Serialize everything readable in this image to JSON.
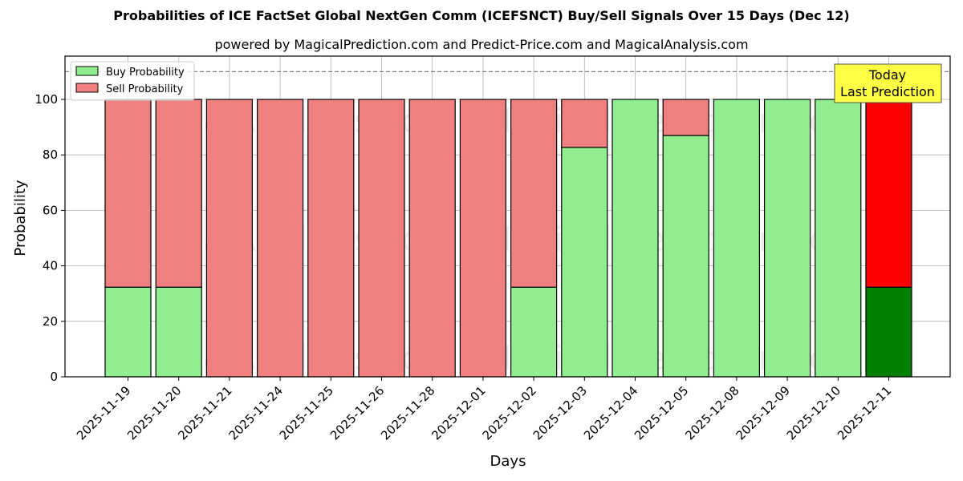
{
  "title": "Probabilities of ICE FactSet Global NextGen Comm (ICEFSNCT) Buy/Sell Signals Over 15 Days (Dec 12)",
  "subtitle": "powered by MagicalPrediction.com and Predict-Price.com and MagicalAnalysis.com",
  "annotation": {
    "line1": "Today",
    "line2": "Last Prediction",
    "bg_color": "#ffff44"
  },
  "watermarks": [
    "MagicalAnalysis.com",
    "MagicalPrediction.com"
  ],
  "colors": {
    "buy": "#90ee90",
    "sell": "#f08080",
    "buy_today": "#008000",
    "sell_today": "#ff0000"
  },
  "chart_data": {
    "type": "bar",
    "stacked": true,
    "title": "Probabilities of ICE FactSet Global NextGen Comm (ICEFSNCT) Buy/Sell Signals Over 15 Days (Dec 12)",
    "subtitle": "powered by MagicalPrediction.com and Predict-Price.com and MagicalAnalysis.com",
    "xlabel": "Days",
    "ylabel": "Probability",
    "ylim": [
      0,
      115
    ],
    "yticks": [
      0,
      20,
      40,
      60,
      80,
      100
    ],
    "grid": true,
    "legend_position": "upper left",
    "reference_line": {
      "y": 110,
      "style": "dashed"
    },
    "categories": [
      "2025-11-19",
      "2025-11-20",
      "2025-11-21",
      "2025-11-24",
      "2025-11-25",
      "2025-11-26",
      "2025-11-28",
      "2025-12-01",
      "2025-12-02",
      "2025-12-03",
      "2025-12-04",
      "2025-12-05",
      "2025-12-08",
      "2025-12-09",
      "2025-12-10",
      "2025-12-11"
    ],
    "series": [
      {
        "name": "Buy Probability",
        "values": [
          32.3,
          32.3,
          0,
          0,
          0,
          0,
          0,
          0,
          32.3,
          82.7,
          100,
          87.0,
          100,
          100,
          100,
          32.3
        ]
      },
      {
        "name": "Sell Probability",
        "values": [
          67.7,
          67.7,
          100,
          100,
          100,
          100,
          100,
          100,
          67.7,
          17.3,
          0,
          13.0,
          0,
          0,
          0,
          67.7
        ]
      }
    ]
  }
}
